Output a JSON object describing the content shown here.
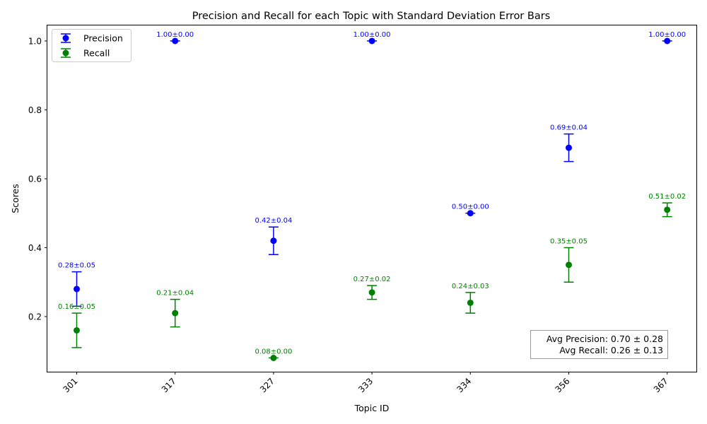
{
  "chart_data": {
    "type": "scatter",
    "title": "Precision and Recall for each Topic with Standard Deviation Error Bars",
    "xlabel": "Topic ID",
    "ylabel": "Scores",
    "categories": [
      "301",
      "317",
      "327",
      "333",
      "334",
      "356",
      "367"
    ],
    "ylim": [
      0.04,
      1.045
    ],
    "yticks": [
      0.2,
      0.4,
      0.6,
      0.8,
      1.0
    ],
    "ytick_labels": [
      "0.2",
      "0.4",
      "0.6",
      "0.8",
      "1.0"
    ],
    "grid": false,
    "legend_position": "top-left",
    "series": [
      {
        "name": "Precision",
        "color": "#0000ff",
        "values": [
          0.28,
          1.0,
          0.42,
          1.0,
          0.5,
          0.69,
          1.0
        ],
        "errors": [
          0.05,
          0.0,
          0.04,
          0.0,
          0.0,
          0.04,
          0.0
        ],
        "labels": [
          "0.28±0.05",
          "1.00±0.00",
          "0.42±0.04",
          "1.00±0.00",
          "0.50±0.00",
          "0.69±0.04",
          "1.00±0.00"
        ]
      },
      {
        "name": "Recall",
        "color": "#008000",
        "values": [
          0.16,
          0.21,
          0.08,
          0.27,
          0.24,
          0.35,
          0.51
        ],
        "errors": [
          0.05,
          0.04,
          0.0,
          0.02,
          0.03,
          0.05,
          0.02
        ],
        "labels": [
          "0.16±0.05",
          "0.21±0.04",
          "0.08±0.00",
          "0.27±0.02",
          "0.24±0.03",
          "0.35±0.05",
          "0.51±0.02"
        ]
      }
    ],
    "annotation": {
      "lines": [
        "Avg Precision: 0.70 ± 0.28",
        "Avg Recall: 0.26 ± 0.13"
      ],
      "position": "bottom-right"
    }
  }
}
